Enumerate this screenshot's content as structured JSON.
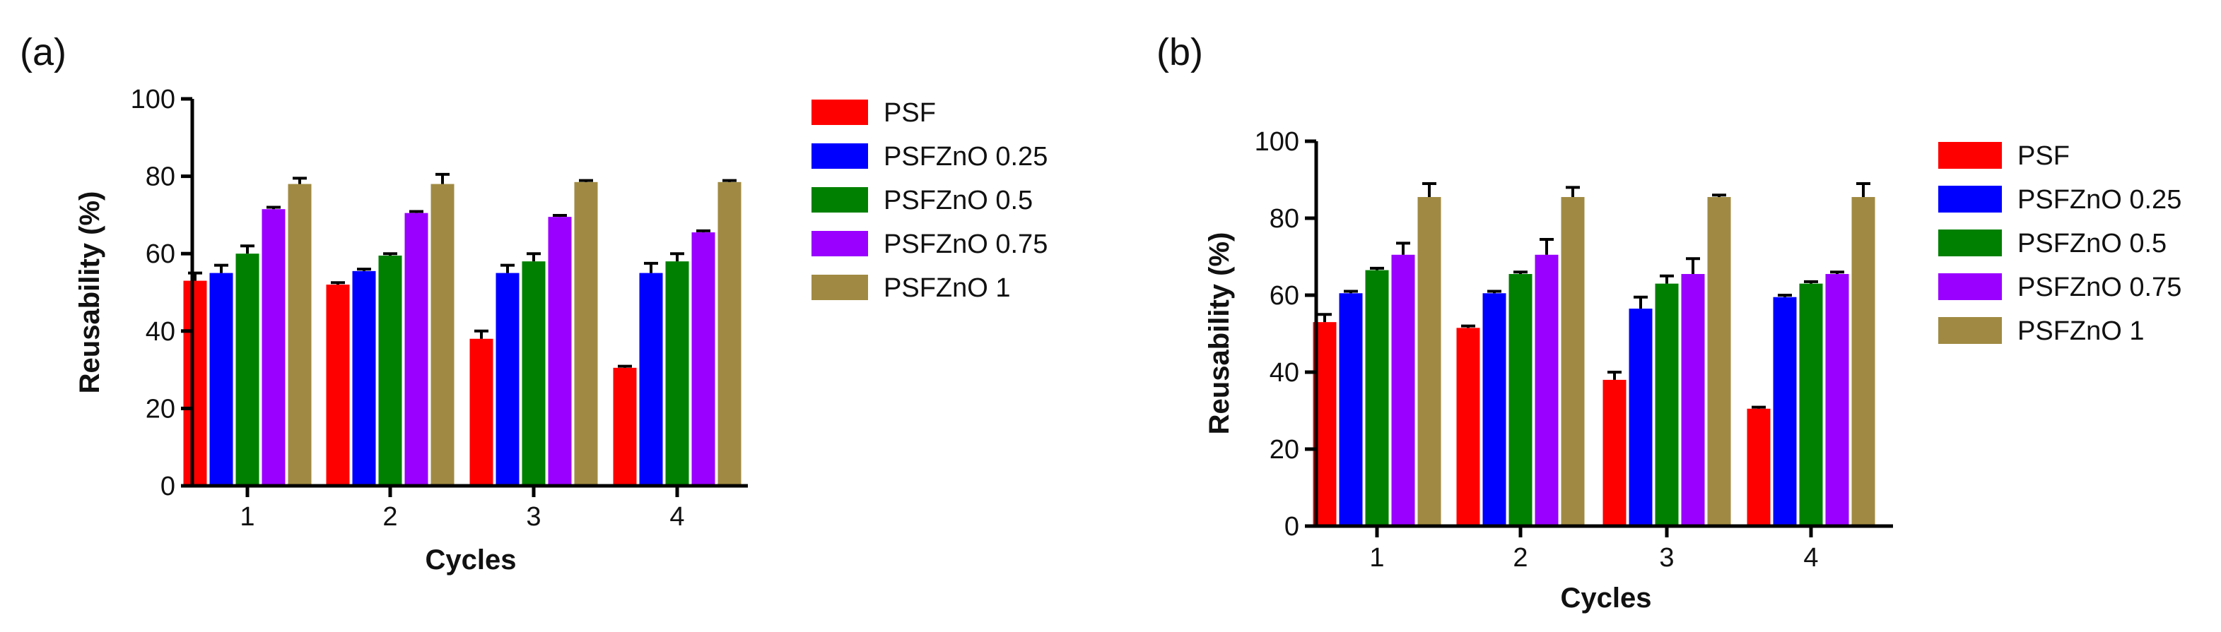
{
  "chart_data": [
    {
      "panel_label": "(a)",
      "type": "bar",
      "xlabel": "Cycles",
      "ylabel": "Reusability (%)",
      "ylim": [
        0,
        100
      ],
      "yticks": [
        0,
        20,
        40,
        60,
        80,
        100
      ],
      "categories": [
        "1",
        "2",
        "3",
        "4"
      ],
      "legend_position": "right",
      "series": [
        {
          "name": "PSF",
          "color": "#ff0000",
          "values": [
            53,
            52,
            38,
            30.5
          ],
          "errors": [
            2,
            0.5,
            2,
            0.4
          ]
        },
        {
          "name": "PSFZnO 0.25",
          "color": "#0000ff",
          "values": [
            55,
            55.5,
            55,
            55
          ],
          "errors": [
            2,
            0.5,
            2,
            2.5
          ]
        },
        {
          "name": "PSFZnO 0.5",
          "color": "#008000",
          "values": [
            60,
            59.5,
            58,
            58
          ],
          "errors": [
            2,
            0.5,
            2,
            2
          ]
        },
        {
          "name": "PSFZnO 0.75",
          "color": "#9900ff",
          "values": [
            71.5,
            70.5,
            69.5,
            65.5
          ],
          "errors": [
            0.5,
            0.4,
            0.4,
            0.4
          ]
        },
        {
          "name": "PSFZnO 1",
          "color": "#a08a43",
          "values": [
            78,
            78,
            78.5,
            78.5
          ],
          "errors": [
            1.5,
            2.5,
            0.4,
            0.4
          ]
        }
      ]
    },
    {
      "panel_label": "(b)",
      "type": "bar",
      "xlabel": "Cycles",
      "ylabel": "Reusability (%)",
      "ylim": [
        0,
        100
      ],
      "yticks": [
        0,
        20,
        40,
        60,
        80,
        100
      ],
      "categories": [
        "1",
        "2",
        "3",
        "4"
      ],
      "legend_position": "right",
      "series": [
        {
          "name": "PSF",
          "color": "#ff0000",
          "values": [
            53,
            51.5,
            38,
            30.5
          ],
          "errors": [
            2,
            0.5,
            2,
            0.4
          ]
        },
        {
          "name": "PSFZnO 0.25",
          "color": "#0000ff",
          "values": [
            60.5,
            60.5,
            56.5,
            59.5
          ],
          "errors": [
            0.5,
            0.5,
            3,
            0.5
          ]
        },
        {
          "name": "PSFZnO 0.5",
          "color": "#008000",
          "values": [
            66.5,
            65.5,
            63,
            63
          ],
          "errors": [
            0.5,
            0.5,
            2,
            0.5
          ]
        },
        {
          "name": "PSFZnO 0.75",
          "color": "#9900ff",
          "values": [
            70.5,
            70.5,
            65.5,
            65.5
          ],
          "errors": [
            3,
            4,
            4,
            0.5
          ]
        },
        {
          "name": "PSFZnO 1",
          "color": "#a08a43",
          "values": [
            85.5,
            85.5,
            85.5,
            85.5
          ],
          "errors": [
            3.5,
            2.5,
            0.5,
            3.5
          ]
        }
      ]
    }
  ]
}
